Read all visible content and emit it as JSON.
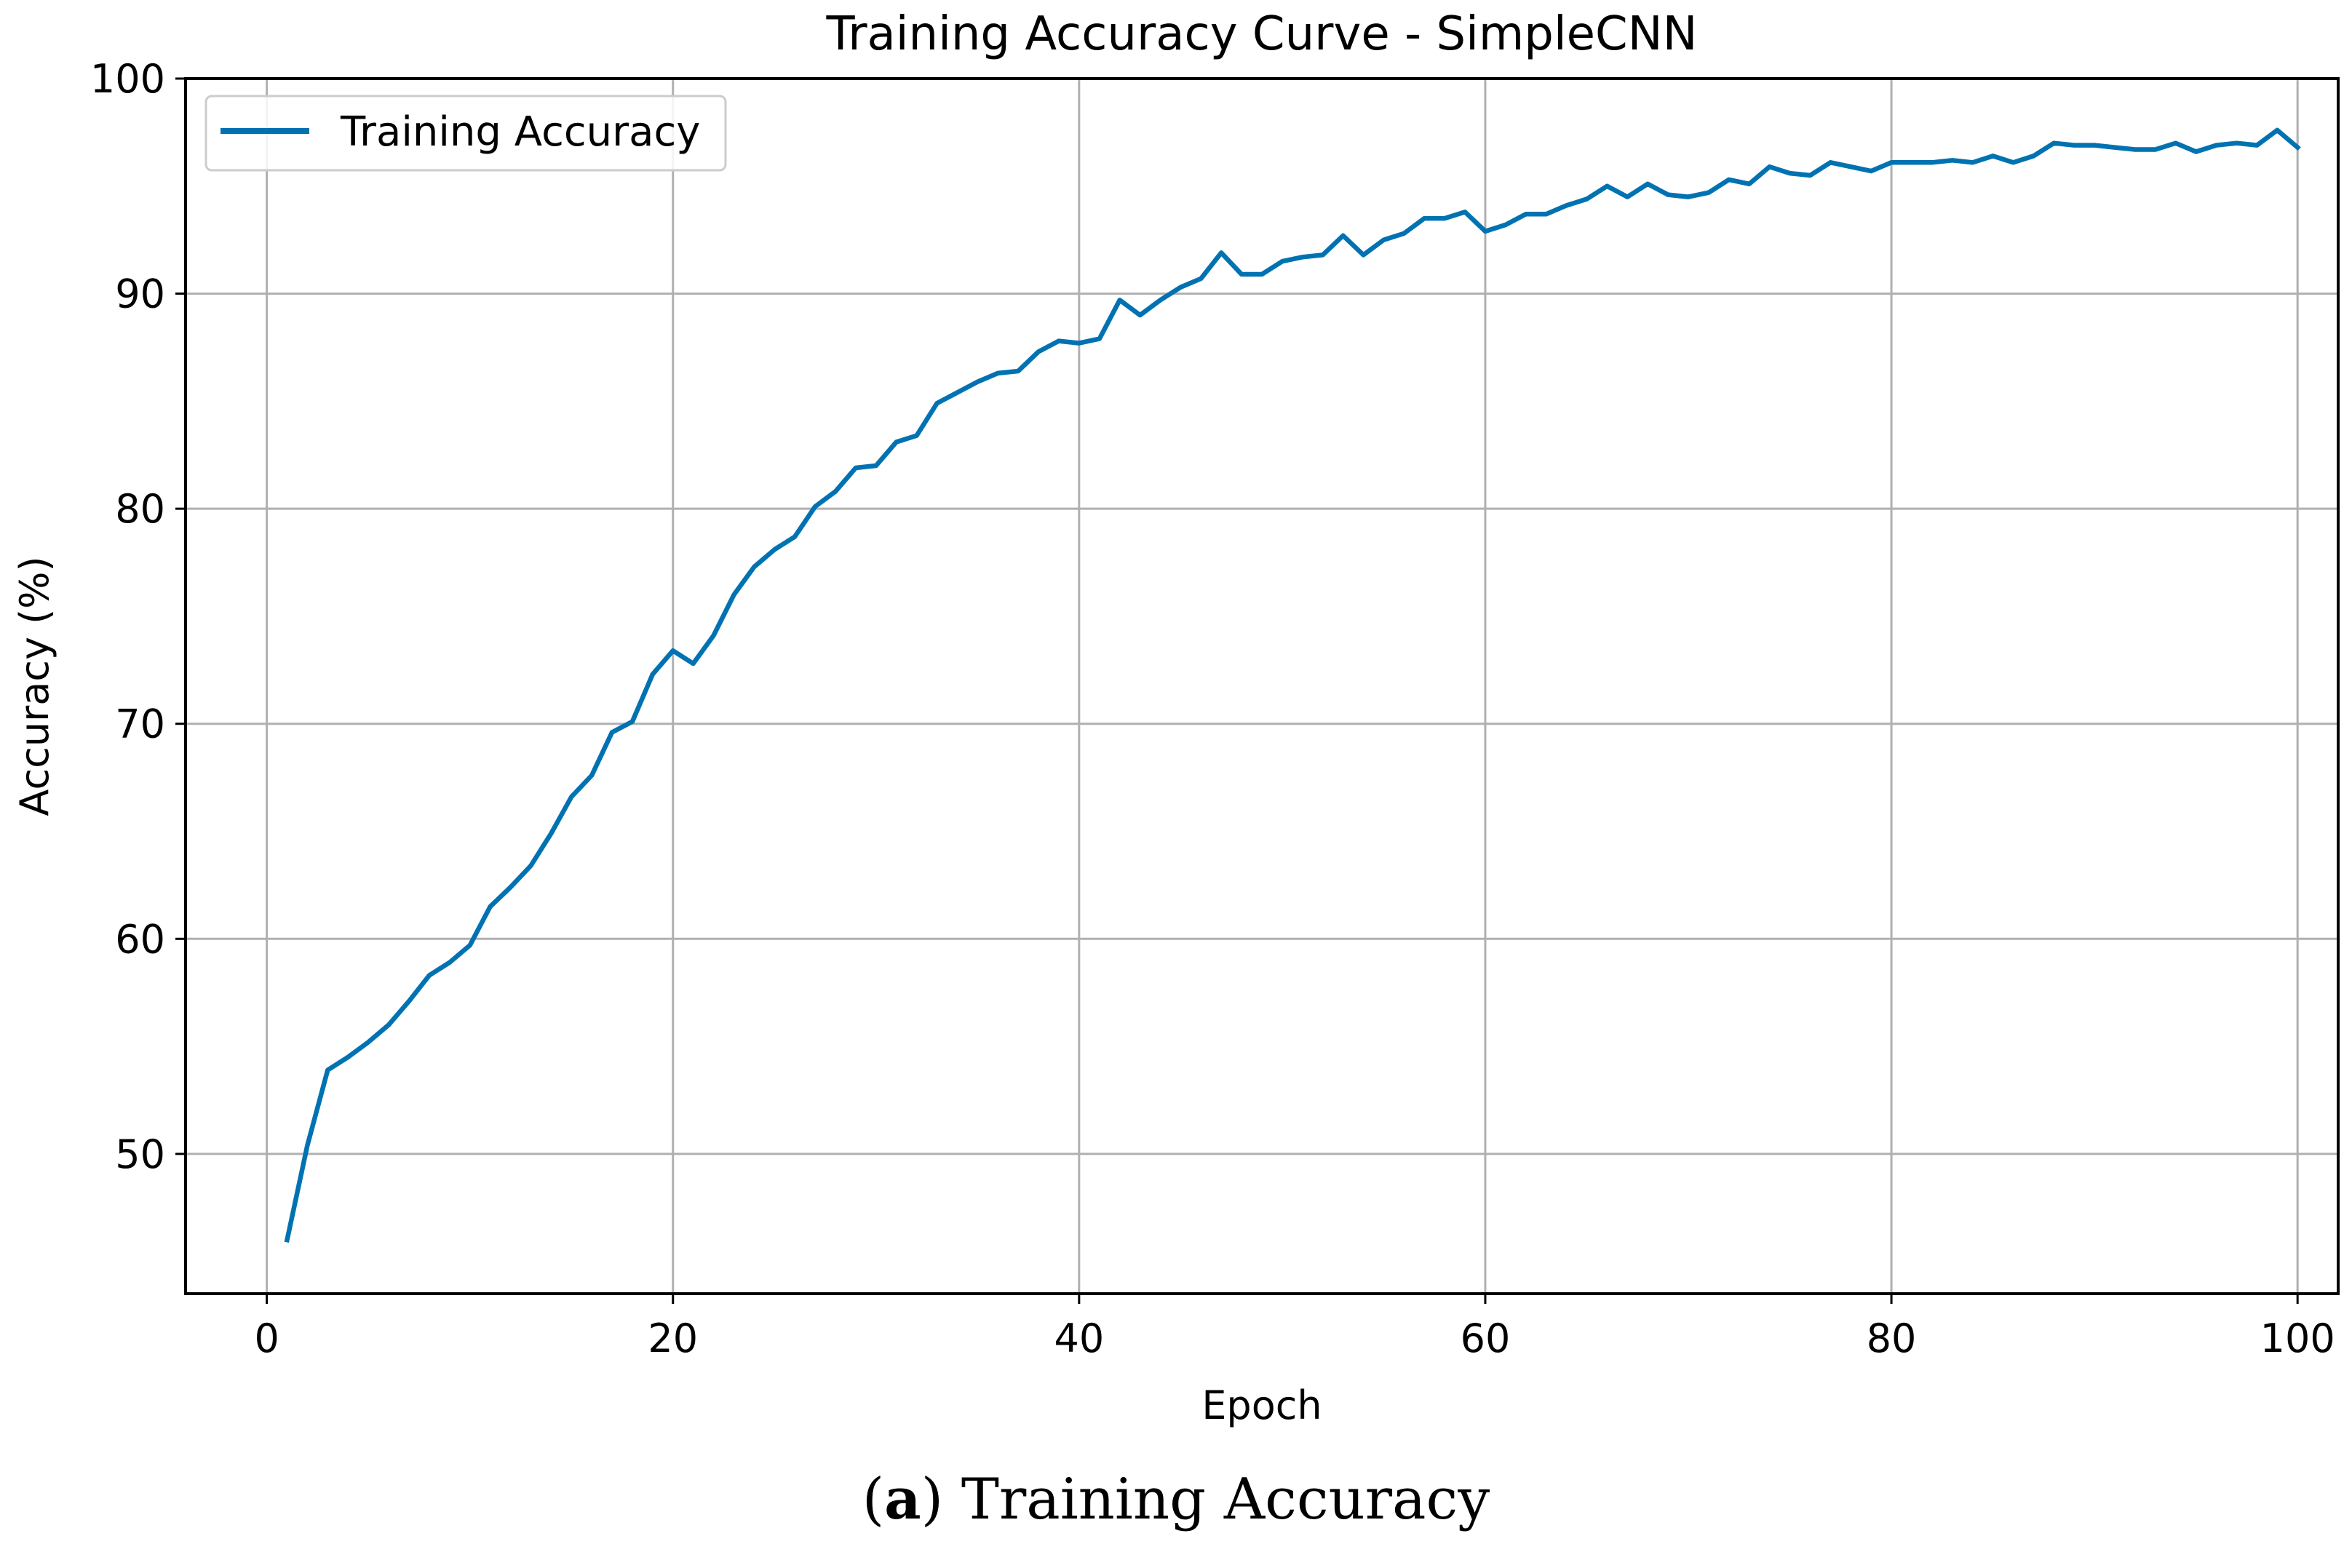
{
  "chart_data": {
    "type": "line",
    "title": "Training Accuracy Curve - SimpleCNN",
    "xlabel": "Epoch",
    "ylabel": "Accuracy (%)",
    "xlim": [
      -4,
      102
    ],
    "ylim": [
      43.5,
      100
    ],
    "xticks": [
      0,
      20,
      40,
      60,
      80,
      100
    ],
    "yticks": [
      50,
      60,
      70,
      80,
      90,
      100
    ],
    "grid": true,
    "legend_position": "top-left",
    "series": [
      {
        "name": "Training Accuracy",
        "color": "#0072b2",
        "x": [
          1,
          2,
          3,
          4,
          5,
          6,
          7,
          8,
          9,
          10,
          11,
          12,
          13,
          14,
          15,
          16,
          17,
          18,
          19,
          20,
          21,
          22,
          23,
          24,
          25,
          26,
          27,
          28,
          29,
          30,
          31,
          32,
          33,
          34,
          35,
          36,
          37,
          38,
          39,
          40,
          41,
          42,
          43,
          44,
          45,
          46,
          47,
          48,
          49,
          50,
          51,
          52,
          53,
          54,
          55,
          56,
          57,
          58,
          59,
          60,
          61,
          62,
          63,
          64,
          65,
          66,
          67,
          68,
          69,
          70,
          71,
          72,
          73,
          74,
          75,
          76,
          77,
          78,
          79,
          80,
          81,
          82,
          83,
          84,
          85,
          86,
          87,
          88,
          89,
          90,
          91,
          92,
          93,
          94,
          95,
          96,
          97,
          98,
          99,
          100
        ],
        "y": [
          46.0,
          50.4,
          53.9,
          54.5,
          55.2,
          56.0,
          57.1,
          58.3,
          58.9,
          59.7,
          61.5,
          62.4,
          63.4,
          64.9,
          66.6,
          67.6,
          69.6,
          70.1,
          72.3,
          73.4,
          72.8,
          74.1,
          76.0,
          77.3,
          78.1,
          78.7,
          80.1,
          80.8,
          81.9,
          82.0,
          83.1,
          83.4,
          84.9,
          85.4,
          85.9,
          86.3,
          86.4,
          87.3,
          87.8,
          87.7,
          87.9,
          89.7,
          89.0,
          89.7,
          90.3,
          90.7,
          91.9,
          90.9,
          90.9,
          91.5,
          91.7,
          91.8,
          92.7,
          91.8,
          92.5,
          92.8,
          93.5,
          93.5,
          93.8,
          92.9,
          93.2,
          93.7,
          93.7,
          94.1,
          94.4,
          95.0,
          94.5,
          95.1,
          94.6,
          94.5,
          94.7,
          95.3,
          95.1,
          95.9,
          95.6,
          95.5,
          96.1,
          95.9,
          95.7,
          96.1,
          96.1,
          96.1,
          96.2,
          96.1,
          96.4,
          96.1,
          96.4,
          97.0,
          96.9,
          96.9,
          96.8,
          96.7,
          96.7,
          97.0,
          96.6,
          96.9,
          97.0,
          96.9,
          97.6,
          96.8
        ]
      }
    ]
  },
  "caption": {
    "label": "(a)",
    "label_letter": "a",
    "text": "Training Accuracy"
  }
}
